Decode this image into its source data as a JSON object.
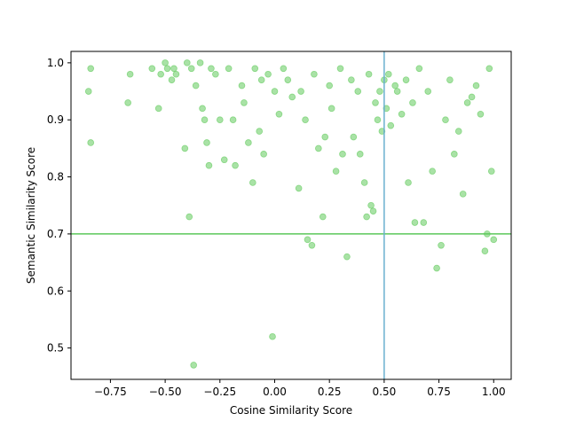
{
  "chart_data": {
    "type": "scatter",
    "title": "",
    "xlabel": "Cosine Similarity Score",
    "ylabel": "Semantic Similarity Score",
    "xlim": [
      -0.93,
      1.08
    ],
    "ylim": [
      0.445,
      1.02
    ],
    "xticks": [
      -0.75,
      -0.5,
      -0.25,
      0.0,
      0.25,
      0.5,
      0.75,
      1.0
    ],
    "xtick_labels": [
      "−0.75",
      "−0.50",
      "−0.25",
      "0.00",
      "0.25",
      "0.50",
      "0.75",
      "1.00"
    ],
    "yticks": [
      0.5,
      0.6,
      0.7,
      0.8,
      0.9,
      1.0
    ],
    "ytick_labels": [
      "0.5",
      "0.6",
      "0.7",
      "0.8",
      "0.9",
      "1.0"
    ],
    "grid": false,
    "legend": "none",
    "point_color": "#6fcf6a",
    "hline": {
      "y": 0.7,
      "color": "#5cc85a"
    },
    "vline": {
      "x": 0.5,
      "color": "#6ab0cf"
    },
    "series": [
      {
        "x": [
          -0.85,
          -0.84,
          -0.84,
          -0.67,
          -0.66,
          -0.56,
          -0.53,
          -0.52,
          -0.5,
          -0.49,
          -0.47,
          -0.46,
          -0.45,
          -0.41,
          -0.4,
          -0.39,
          -0.38,
          -0.37,
          -0.36,
          -0.34,
          -0.33,
          -0.32,
          -0.31,
          -0.3,
          -0.29,
          -0.27,
          -0.25,
          -0.23,
          -0.21,
          -0.19,
          -0.18,
          -0.15,
          -0.14,
          -0.12,
          -0.1,
          -0.09,
          -0.07,
          -0.06,
          -0.05,
          -0.03,
          -0.01,
          0.0,
          0.02,
          0.04,
          0.06,
          0.08,
          0.11,
          0.12,
          0.14,
          0.15,
          0.17,
          0.18,
          0.2,
          0.22,
          0.23,
          0.25,
          0.26,
          0.28,
          0.3,
          0.31,
          0.33,
          0.35,
          0.36,
          0.38,
          0.39,
          0.41,
          0.42,
          0.43,
          0.44,
          0.45,
          0.46,
          0.47,
          0.48,
          0.49,
          0.5,
          0.51,
          0.52,
          0.53,
          0.55,
          0.56,
          0.58,
          0.6,
          0.61,
          0.63,
          0.64,
          0.66,
          0.68,
          0.7,
          0.72,
          0.74,
          0.76,
          0.78,
          0.8,
          0.82,
          0.84,
          0.86,
          0.88,
          0.9,
          0.92,
          0.94,
          0.96,
          0.97,
          0.98,
          0.99,
          1.0
        ],
        "y": [
          0.95,
          0.99,
          0.86,
          0.93,
          0.98,
          0.99,
          0.92,
          0.98,
          1.0,
          0.99,
          0.97,
          0.99,
          0.98,
          0.85,
          1.0,
          0.73,
          0.99,
          0.47,
          0.96,
          1.0,
          0.92,
          0.9,
          0.86,
          0.82,
          0.99,
          0.98,
          0.9,
          0.83,
          0.99,
          0.9,
          0.82,
          0.96,
          0.93,
          0.86,
          0.79,
          0.99,
          0.88,
          0.97,
          0.84,
          0.98,
          0.52,
          0.95,
          0.91,
          0.99,
          0.97,
          0.94,
          0.78,
          0.95,
          0.9,
          0.69,
          0.68,
          0.98,
          0.85,
          0.73,
          0.87,
          0.96,
          0.92,
          0.81,
          0.99,
          0.84,
          0.66,
          0.97,
          0.87,
          0.95,
          0.84,
          0.79,
          0.73,
          0.98,
          0.75,
          0.74,
          0.93,
          0.9,
          0.95,
          0.88,
          0.97,
          0.92,
          0.98,
          0.89,
          0.96,
          0.95,
          0.91,
          0.97,
          0.79,
          0.93,
          0.72,
          0.99,
          0.72,
          0.95,
          0.81,
          0.64,
          0.68,
          0.9,
          0.97,
          0.84,
          0.88,
          0.77,
          0.93,
          0.94,
          0.96,
          0.91,
          0.67,
          0.7,
          0.99,
          0.81,
          0.69
        ]
      }
    ]
  }
}
